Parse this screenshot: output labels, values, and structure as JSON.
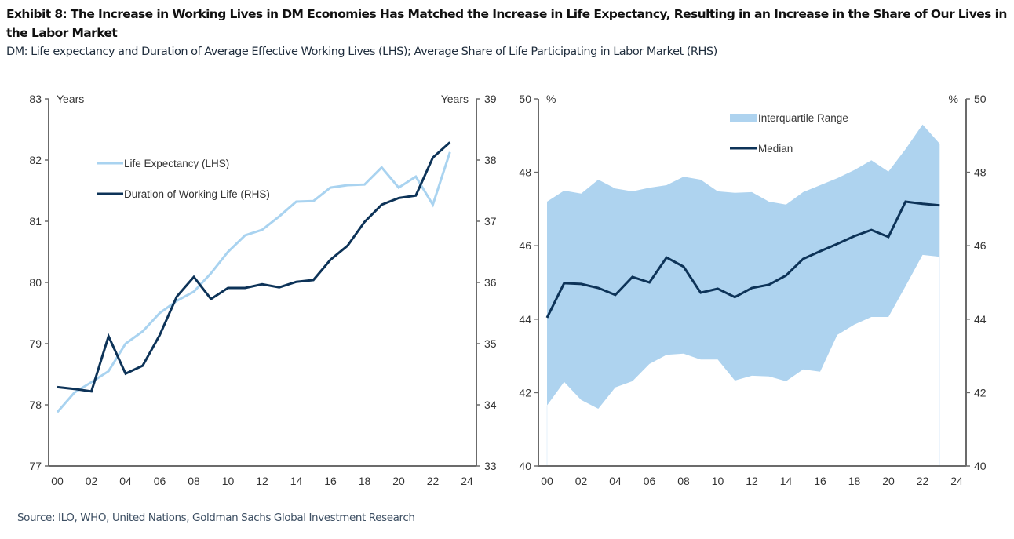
{
  "header": {
    "title": "Exhibit 8: The Increase in Working Lives in DM Economies Has Matched the Increase in Life Expectancy, Resulting in an Increase in the Share of Our Lives in the Labor Market",
    "subtitle": "DM: Life expectancy and Duration of Average Effective Working Lives (LHS); Average Share of Life Participating in Labor Market (RHS)"
  },
  "footer": {
    "source": "Source: ILO, WHO, United Nations, Goldman Sachs Global Investment Research"
  },
  "colors": {
    "light_blue": "#a9d3f0",
    "dark_navy": "#0d3358",
    "band_fill": "#aed3ef",
    "axis": "#6b6b6b"
  },
  "chart_data": [
    {
      "type": "line",
      "title": "",
      "x": [
        0,
        1,
        2,
        3,
        4,
        5,
        6,
        7,
        8,
        9,
        10,
        11,
        12,
        13,
        14,
        15,
        16,
        17,
        18,
        19,
        20,
        21,
        22,
        23
      ],
      "xtick_values": [
        0,
        2,
        4,
        6,
        8,
        10,
        12,
        14,
        16,
        18,
        20,
        22,
        24
      ],
      "xtick_labels": [
        "00",
        "02",
        "04",
        "06",
        "08",
        "10",
        "12",
        "14",
        "16",
        "18",
        "20",
        "22",
        "24"
      ],
      "xlim": [
        -1,
        24
      ],
      "ylabel_left": "Years",
      "ylabel_right": "Years",
      "ylim_left": [
        77,
        83
      ],
      "ylim_right": [
        33,
        39
      ],
      "yticks_left": [
        77,
        78,
        79,
        80,
        81,
        82,
        83
      ],
      "yticks_right": [
        33,
        34,
        35,
        36,
        37,
        38,
        39
      ],
      "grid": false,
      "legend_position": "top-left",
      "series": [
        {
          "name": "Life Expectancy (LHS)",
          "axis": "left",
          "color": "#a9d3f0",
          "values": [
            77.88,
            78.2,
            78.37,
            78.55,
            79.0,
            79.2,
            79.5,
            79.7,
            79.85,
            80.15,
            80.5,
            80.77,
            80.86,
            81.08,
            81.32,
            81.33,
            81.55,
            81.59,
            81.6,
            81.88,
            81.55,
            81.73,
            81.27,
            82.13
          ]
        },
        {
          "name": "Duration of Working Life (RHS)",
          "axis": "right",
          "color": "#0d3358",
          "values": [
            34.29,
            34.26,
            34.22,
            35.12,
            34.51,
            34.64,
            35.14,
            35.77,
            36.09,
            35.73,
            35.91,
            35.91,
            35.97,
            35.92,
            36.01,
            36.04,
            36.37,
            36.6,
            36.99,
            37.27,
            37.38,
            37.42,
            38.04,
            38.29
          ]
        }
      ]
    },
    {
      "type": "area",
      "title": "",
      "x": [
        0,
        1,
        2,
        3,
        4,
        5,
        6,
        7,
        8,
        9,
        10,
        11,
        12,
        13,
        14,
        15,
        16,
        17,
        18,
        19,
        20,
        21,
        22,
        23
      ],
      "xtick_values": [
        0,
        2,
        4,
        6,
        8,
        10,
        12,
        14,
        16,
        18,
        20,
        22,
        24
      ],
      "xtick_labels": [
        "00",
        "02",
        "04",
        "06",
        "08",
        "10",
        "12",
        "14",
        "16",
        "18",
        "20",
        "22",
        "24"
      ],
      "xlim": [
        -1,
        24
      ],
      "ylabel_left": "%",
      "ylabel_right": "%",
      "ylim_left": [
        40,
        50
      ],
      "ylim_right": [
        40,
        50
      ],
      "yticks_left": [
        40,
        42,
        44,
        46,
        48,
        50
      ],
      "yticks_right": [
        40,
        42,
        44,
        46,
        48,
        50
      ],
      "grid": false,
      "legend_position": "top-right",
      "band": {
        "name": "Interquartile Range",
        "color": "#aed3ef",
        "upper": [
          47.2,
          47.5,
          47.42,
          47.8,
          47.56,
          47.48,
          47.58,
          47.65,
          47.88,
          47.8,
          47.48,
          47.44,
          47.46,
          47.2,
          47.12,
          47.46,
          47.65,
          47.84,
          48.06,
          48.33,
          48.02,
          48.63,
          49.3,
          48.78
        ],
        "lower": [
          41.65,
          42.29,
          41.8,
          41.56,
          42.14,
          42.31,
          42.78,
          43.03,
          43.06,
          42.9,
          42.9,
          42.33,
          42.46,
          42.44,
          42.31,
          42.63,
          42.57,
          43.57,
          43.85,
          44.06,
          44.06,
          44.9,
          45.75,
          45.7
        ]
      },
      "series": [
        {
          "name": "Median",
          "color": "#0d3358",
          "values": [
            44.04,
            44.98,
            44.96,
            44.85,
            44.66,
            45.15,
            45.0,
            45.68,
            45.43,
            44.72,
            44.83,
            44.6,
            44.85,
            44.94,
            45.19,
            45.64,
            45.85,
            46.05,
            46.26,
            46.43,
            46.24,
            47.2,
            47.14,
            47.1
          ]
        }
      ]
    }
  ]
}
